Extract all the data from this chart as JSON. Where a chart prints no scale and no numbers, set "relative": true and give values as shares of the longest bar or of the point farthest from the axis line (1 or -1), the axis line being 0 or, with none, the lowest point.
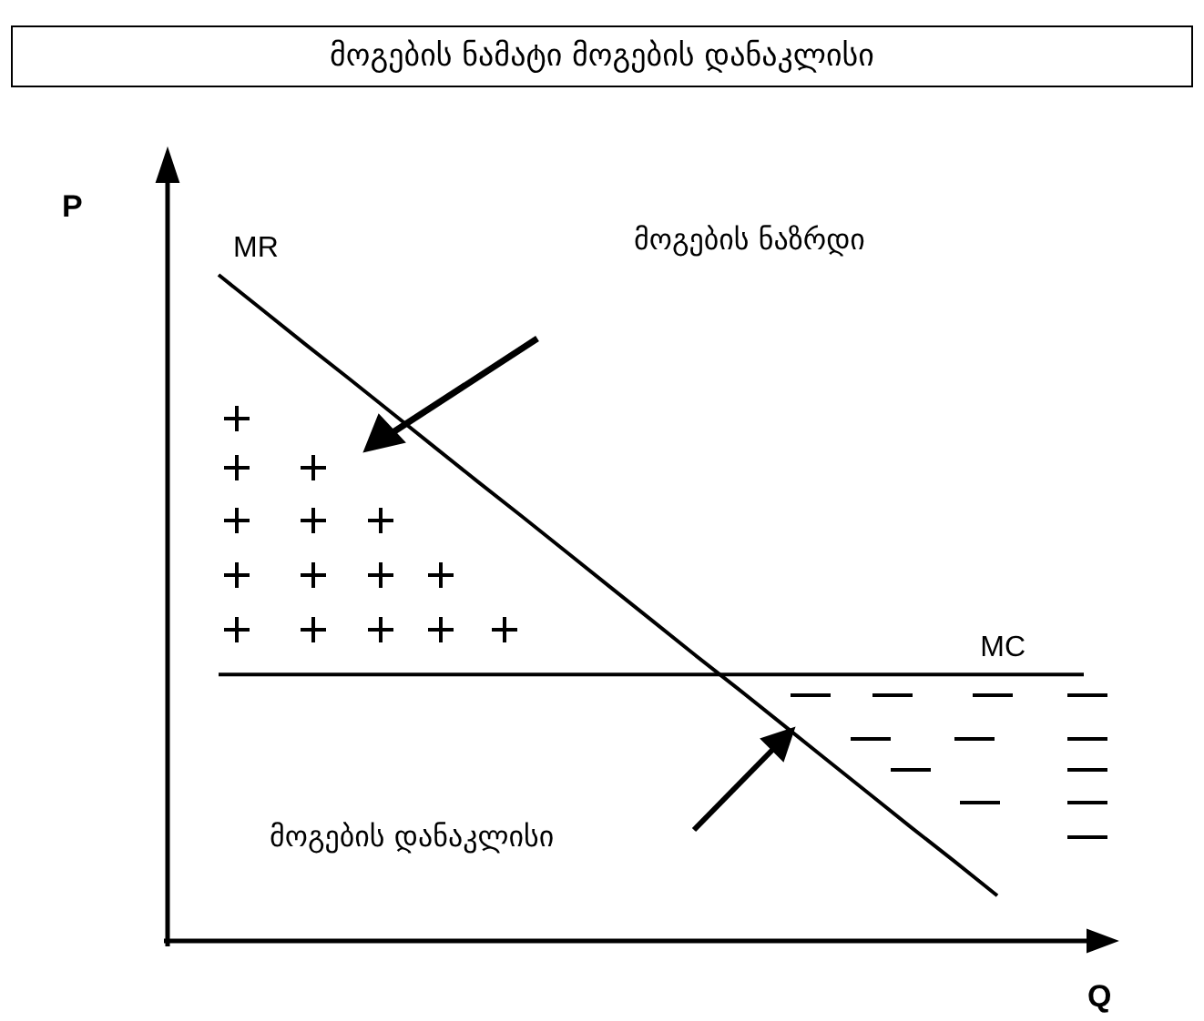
{
  "chart_data": {
    "type": "line",
    "relative": true,
    "marker": "none",
    "title": "მოგების ნამატი მოგების დანაკლისი",
    "xlabel": "Q",
    "ylabel": "P",
    "categories": [
      null,
      null,
      null,
      null,
      null,
      null,
      null,
      null,
      null,
      null,
      null,
      null,
      null,
      null,
      null,
      null,
      null,
      null,
      null,
      null,
      null
    ],
    "series": [
      {
        "name": "MR",
        "color": "#000000",
        "values": [
          1,
          0.948,
          0.896,
          0.845,
          0.793,
          0.741,
          0.689,
          0.638,
          0.586,
          0.534,
          0.482,
          0.43,
          0.379,
          0.327,
          0.275,
          0.223,
          0.171,
          0.12,
          0.068,
          null,
          null
        ]
      },
      {
        "name": "MC",
        "color": "#000000",
        "values": [
          0.4,
          0.4,
          0.4,
          0.4,
          0.4,
          0.4,
          0.4,
          0.4,
          0.4,
          0.4,
          0.4,
          0.4,
          0.4,
          0.4,
          0.4,
          0.4,
          0.4,
          0.4,
          0.4,
          0.4,
          0.4
        ]
      }
    ],
    "annotations": [
      "მოგების ნაზრდი",
      "მოგების დანაკლისი"
    ]
  }
}
